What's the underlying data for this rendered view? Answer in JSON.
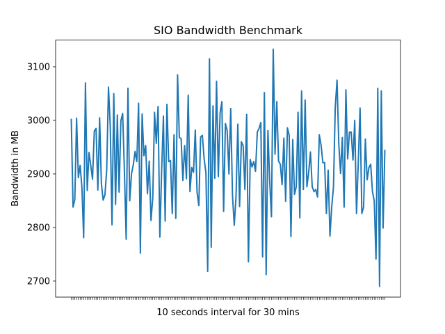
{
  "chart_data": {
    "type": "line",
    "title": "SIO Bandwidth Benchmark",
    "xlabel": "10 seconds interval for 30 mins",
    "ylabel": "Bandwidth in MB",
    "ylim": [
      2670,
      3150
    ],
    "yticks": [
      2700,
      2800,
      2900,
      3000,
      3100
    ],
    "xtick_labels_visible": false,
    "grid": false,
    "line_color": "#1f77b4",
    "series": [
      {
        "values": [
          3003,
          2838,
          2852,
          3004,
          2893,
          2916,
          2875,
          2781,
          3070,
          2869,
          2940,
          2916,
          2890,
          2980,
          2985,
          2870,
          3005,
          2882,
          2851,
          2861,
          2907,
          3062,
          2990,
          2805,
          3050,
          2843,
          3010,
          2866,
          2999,
          3013,
          2905,
          2778,
          3060,
          2850,
          2900,
          2917,
          2942,
          2923,
          3032,
          2752,
          3012,
          2934,
          2953,
          2863,
          2924,
          2813,
          2855,
          3015,
          2957,
          3026,
          2782,
          2905,
          3008,
          2812,
          3030,
          2923,
          2925,
          2826,
          2973,
          2817,
          3085,
          2968,
          2966,
          2888,
          2953,
          2891,
          3047,
          2867,
          2912,
          2903,
          2982,
          2866,
          2841,
          2969,
          2972,
          2928,
          2902,
          2718,
          3115,
          2763,
          3027,
          2892,
          3073,
          2895,
          3013,
          3035,
          2830,
          2994,
          2981,
          2900,
          3022,
          2860,
          2804,
          2858,
          2993,
          2839,
          2960,
          2953,
          2871,
          3011,
          2736,
          2927,
          2913,
          2923,
          2905,
          2978,
          2985,
          2996,
          2745,
          3052,
          2712,
          2981,
          2886,
          2820,
          3133,
          2937,
          3035,
          2924,
          2918,
          2880,
          2967,
          2849,
          2986,
          2972,
          2783,
          2964,
          2862,
          2876,
          3015,
          2818,
          3055,
          2871,
          3038,
          2876,
          2903,
          2941,
          2876,
          2867,
          2871,
          2857,
          2973,
          2954,
          2921,
          2921,
          2826,
          2907,
          2784,
          2838,
          2876,
          3024,
          3075,
          2956,
          2901,
          2968,
          2838,
          3057,
          2928,
          2978,
          2978,
          2926,
          3000,
          2826,
          2922,
          3023,
          2826,
          2838,
          2965,
          2889,
          2912,
          2918,
          2867,
          2850,
          2741,
          3060,
          2690,
          3055,
          2799,
          2945
        ]
      }
    ]
  }
}
